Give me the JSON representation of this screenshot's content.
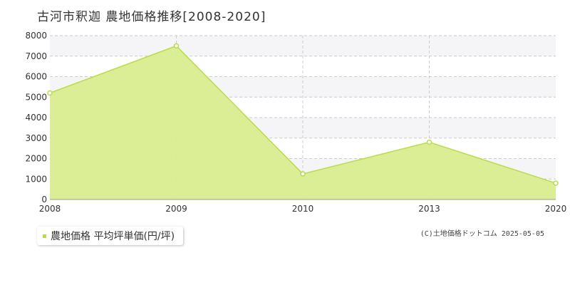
{
  "title": "古河市釈迦 農地価格推移[2008-2020]",
  "legend": {
    "label": "農地価格 平均坪単価(円/坪)"
  },
  "copyright": "(C)土地価格ドットコム 2025-05-05",
  "colors": {
    "fill": "#d9ec8f",
    "line": "#b8dc4a",
    "legend_swatch": "#b8dc4a",
    "band": "#f5f5f7",
    "grid": "#cccccc"
  },
  "chart_data": {
    "type": "area",
    "title": "古河市釈迦 農地価格推移[2008-2020]",
    "x_labels": [
      "2008",
      "2009",
      "2010",
      "2013",
      "2020"
    ],
    "y_ticks": [
      0,
      1000,
      2000,
      3000,
      4000,
      5000,
      6000,
      7000,
      8000
    ],
    "ylim": [
      0,
      8000
    ],
    "grid": true,
    "legend_position": "bottom-left",
    "series": [
      {
        "name": "農地価格 平均坪単価(円/坪)",
        "x": [
          "2008",
          "2009",
          "2010",
          "2013",
          "2020"
        ],
        "values": [
          5200,
          7500,
          1250,
          2800,
          800
        ]
      }
    ]
  }
}
